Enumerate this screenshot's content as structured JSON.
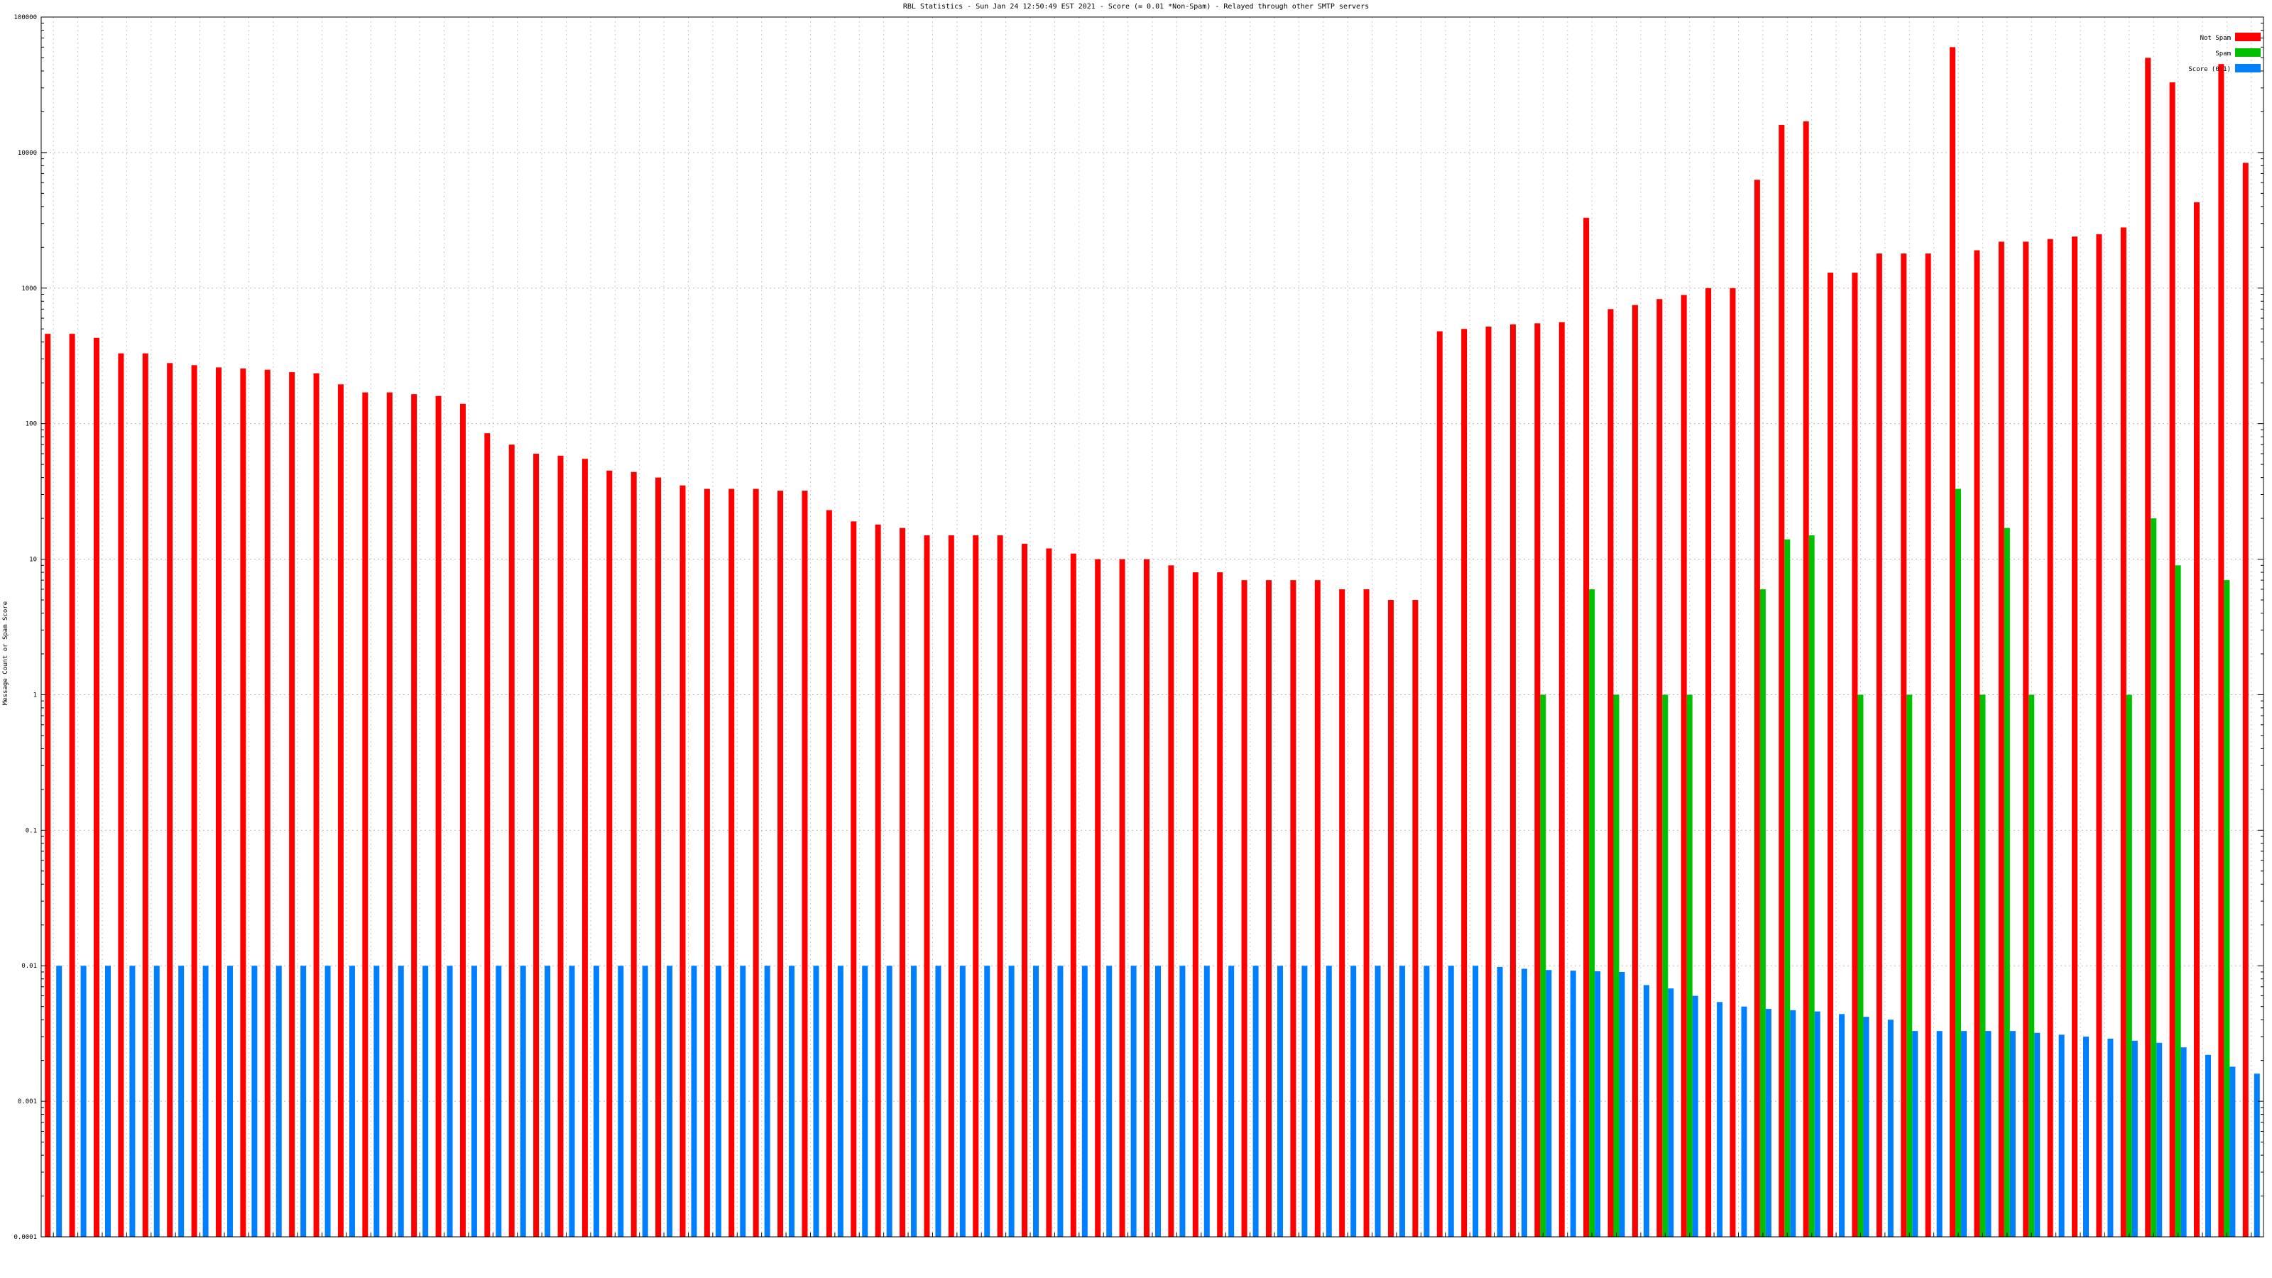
{
  "chart_data": {
    "type": "bar",
    "title": "RBL Statistics - Sun Jan 24 12:50:49 EST 2021 - Score (= 0.01 *Non-Spam) - Relayed through other SMTP servers",
    "ylabel": "Message Count or Spam Score",
    "yscale": "log",
    "ylim": [
      0.0001,
      100000
    ],
    "yticks": [
      {
        "value": 0.0001,
        "label": "0.0001"
      },
      {
        "value": 0.001,
        "label": "0.001"
      },
      {
        "value": 0.01,
        "label": "0.01"
      },
      {
        "value": 0.1,
        "label": "0.1"
      },
      {
        "value": 1,
        "label": "1"
      },
      {
        "value": 10,
        "label": "10"
      },
      {
        "value": 100,
        "label": "100"
      },
      {
        "value": 1000,
        "label": "1000"
      },
      {
        "value": 10000,
        "label": "10000"
      },
      {
        "value": 100000,
        "label": "100000"
      }
    ],
    "grid": true,
    "legend_position": "top-right",
    "category_count": 91,
    "series": [
      {
        "name": "Not Spam",
        "color": "#ff0000",
        "values": [
          460,
          460,
          430,
          330,
          330,
          280,
          270,
          260,
          255,
          250,
          240,
          235,
          195,
          170,
          170,
          165,
          160,
          140,
          85,
          70,
          60,
          58,
          55,
          45,
          44,
          40,
          35,
          33,
          33,
          33,
          32,
          32,
          23,
          19,
          18,
          17,
          15,
          15,
          15,
          15,
          13,
          12,
          11,
          10,
          10,
          10,
          9,
          8,
          8,
          7,
          7,
          7,
          7,
          6,
          6,
          5,
          5,
          480,
          500,
          520,
          540,
          550,
          560,
          3300,
          700,
          750,
          830,
          890,
          1000,
          1000,
          6300,
          16000,
          17000,
          1300,
          1300,
          1800,
          1800,
          1800,
          60000,
          1900,
          2200,
          2200,
          2300,
          2400,
          2500,
          2800,
          50000,
          33000,
          4300,
          45000,
          8400
        ]
      },
      {
        "name": "Spam",
        "color": "#00c000",
        "values": [
          0,
          0,
          0,
          0,
          0,
          0,
          0,
          0,
          0,
          0,
          0,
          0,
          0,
          0,
          0,
          0,
          0,
          0,
          0,
          0,
          0,
          0,
          0,
          0,
          0,
          0,
          0,
          0,
          0,
          0,
          0,
          0,
          0,
          0,
          0,
          0,
          0,
          0,
          0,
          0,
          0,
          0,
          0,
          0,
          0,
          0,
          0,
          0,
          0,
          0,
          0,
          0,
          0,
          0,
          0,
          0,
          0,
          0,
          0,
          0,
          0,
          1,
          0,
          6,
          1,
          0,
          1,
          1,
          0,
          0,
          6,
          14,
          15,
          0,
          1,
          0,
          1,
          0,
          33,
          1,
          17,
          1,
          0,
          0,
          0,
          1,
          20,
          9,
          0,
          7,
          0
        ]
      },
      {
        "name": "Score (0.1)",
        "color": "#0080ff",
        "values": [
          0.01,
          0.01,
          0.01,
          0.01,
          0.01,
          0.01,
          0.01,
          0.01,
          0.01,
          0.01,
          0.01,
          0.01,
          0.01,
          0.01,
          0.01,
          0.01,
          0.01,
          0.01,
          0.01,
          0.01,
          0.01,
          0.01,
          0.01,
          0.01,
          0.01,
          0.01,
          0.01,
          0.01,
          0.01,
          0.01,
          0.01,
          0.01,
          0.01,
          0.01,
          0.01,
          0.01,
          0.01,
          0.01,
          0.01,
          0.01,
          0.01,
          0.01,
          0.01,
          0.01,
          0.01,
          0.01,
          0.01,
          0.01,
          0.01,
          0.01,
          0.01,
          0.01,
          0.01,
          0.01,
          0.01,
          0.01,
          0.01,
          0.01,
          0.01,
          0.0098,
          0.0095,
          0.0093,
          0.0092,
          0.0091,
          0.009,
          0.0072,
          0.0068,
          0.006,
          0.0054,
          0.005,
          0.0048,
          0.0047,
          0.0046,
          0.0044,
          0.0042,
          0.004,
          0.0033,
          0.0033,
          0.0033,
          0.0033,
          0.0033,
          0.0032,
          0.0031,
          0.003,
          0.0029,
          0.0028,
          0.0027,
          0.0025,
          0.0022,
          0.0018,
          0.0016,
          0.00085,
          0.00075
        ]
      }
    ]
  }
}
